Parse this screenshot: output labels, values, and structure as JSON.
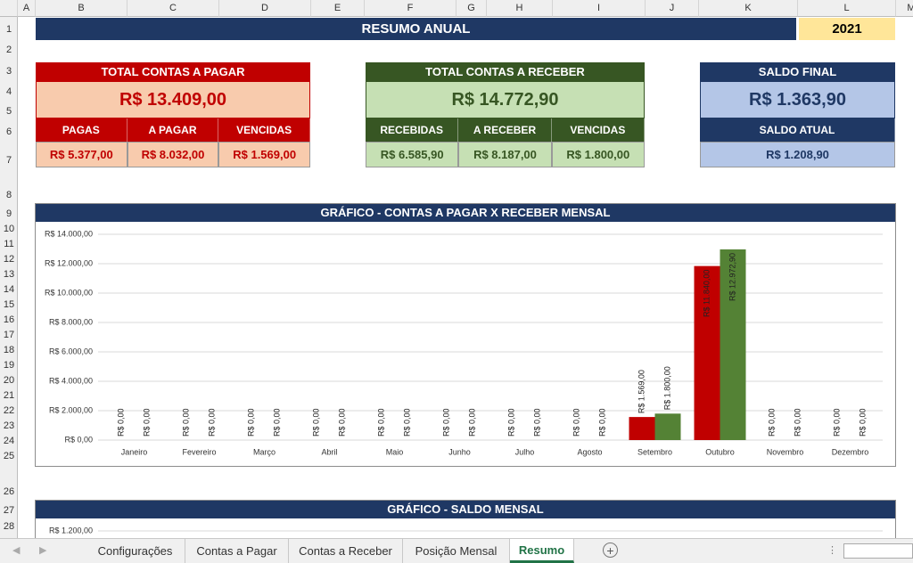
{
  "column_headers": [
    "A",
    "B",
    "C",
    "D",
    "E",
    "F",
    "G",
    "H",
    "I",
    "J",
    "K",
    "L",
    "M"
  ],
  "row_headers": [
    1,
    2,
    3,
    4,
    5,
    6,
    7,
    8,
    9,
    10,
    11,
    12,
    13,
    14,
    15,
    16,
    17,
    18,
    19,
    20,
    21,
    22,
    23,
    24,
    25,
    26,
    27,
    28
  ],
  "title": "RESUMO ANUAL",
  "year": 2021,
  "summary": {
    "pagar": {
      "title": "TOTAL CONTAS A PAGAR",
      "total": "R$ 13.409,00",
      "items": [
        {
          "label": "PAGAS",
          "value": "R$ 5.377,00"
        },
        {
          "label": "A PAGAR",
          "value": "R$ 8.032,00"
        },
        {
          "label": "VENCIDAS",
          "value": "R$ 1.569,00"
        }
      ]
    },
    "receber": {
      "title": "TOTAL CONTAS A RECEBER",
      "total": "R$ 14.772,90",
      "items": [
        {
          "label": "RECEBIDAS",
          "value": "R$ 6.585,90"
        },
        {
          "label": "A RECEBER",
          "value": "R$ 8.187,00"
        },
        {
          "label": "VENCIDAS",
          "value": "R$ 1.800,00"
        }
      ]
    },
    "saldo": {
      "title": "SALDO FINAL",
      "total": "R$ 1.363,90",
      "items": [
        {
          "label": "SALDO ATUAL",
          "value": "R$ 1.208,90"
        }
      ]
    }
  },
  "chart_data": [
    {
      "type": "bar",
      "title": "GRÁFICO - CONTAS A PAGAR X RECEBER MENSAL",
      "categories": [
        "Janeiro",
        "Fevereiro",
        "Março",
        "Abril",
        "Maio",
        "Junho",
        "Julho",
        "Agosto",
        "Setembro",
        "Outubro",
        "Novembro",
        "Dezembro"
      ],
      "series": [
        {
          "color": "#c00000",
          "values": [
            0,
            0,
            0,
            0,
            0,
            0,
            0,
            0,
            1569,
            11840,
            0,
            0
          ],
          "value_labels": [
            "R$ 0,00",
            "R$ 0,00",
            "R$ 0,00",
            "R$ 0,00",
            "R$ 0,00",
            "R$ 0,00",
            "R$ 0,00",
            "R$ 0,00",
            "R$ 1.569,00",
            "R$ 11.840,00",
            "R$ 0,00",
            "R$ 0,00"
          ]
        },
        {
          "color": "#548235",
          "values": [
            0,
            0,
            0,
            0,
            0,
            0,
            0,
            0,
            1800,
            12972.9,
            0,
            0
          ],
          "value_labels": [
            "R$ 0,00",
            "R$ 0,00",
            "R$ 0,00",
            "R$ 0,00",
            "R$ 0,00",
            "R$ 0,00",
            "R$ 0,00",
            "R$ 0,00",
            "R$ 1.800,00",
            "R$ 12.972,90",
            "R$ 0,00",
            "R$ 0,00"
          ]
        }
      ],
      "ylim": [
        0,
        14000
      ],
      "yticks": [
        {
          "value": 0,
          "label": "R$ 0,00"
        },
        {
          "value": 2000,
          "label": "R$ 2.000,00"
        },
        {
          "value": 4000,
          "label": "R$ 4.000,00"
        },
        {
          "value": 6000,
          "label": "R$ 6.000,00"
        },
        {
          "value": 8000,
          "label": "R$ 8.000,00"
        },
        {
          "value": 10000,
          "label": "R$ 10.000,00"
        },
        {
          "value": 12000,
          "label": "R$ 12.000,00"
        },
        {
          "value": 14000,
          "label": "R$ 14.000,00"
        }
      ],
      "grid": true
    },
    {
      "type": "line",
      "title": "GRÁFICO - SALDO MENSAL",
      "yticks": [
        {
          "value": 1200,
          "label": "R$ 1.200,00"
        }
      ],
      "grid": true
    }
  ],
  "sheet_tabs": [
    "Configurações",
    "Contas a Pagar",
    "Contas a Receber",
    "Posição Mensal",
    "Resumo"
  ],
  "active_tab": 4
}
